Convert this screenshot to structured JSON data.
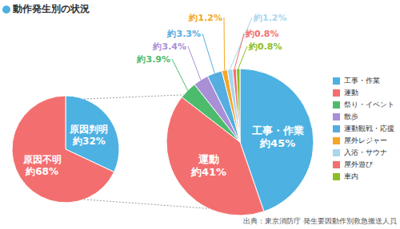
{
  "chart_data": [
    {
      "type": "pie",
      "categories": [
        "原因判明",
        "原因不明"
      ],
      "values": [
        32,
        68
      ],
      "value_labels": [
        "約32%",
        "約68%"
      ],
      "colors": [
        "#4db1e2",
        "#f36f6f"
      ],
      "data_labels": true
    },
    {
      "type": "pie",
      "title": "動作発生別の状況",
      "categories": [
        "工事・作業",
        "運動",
        "祭り・イベント",
        "散歩",
        "運動観戦・応援",
        "屋外レジャー",
        "入浴・サウナ",
        "屋外遊び",
        "車内"
      ],
      "values": [
        45,
        41,
        3.9,
        3.4,
        3.3,
        1.2,
        1.2,
        0.8,
        0.8
      ],
      "value_labels": [
        "約45%",
        "約41%",
        "約3.9%",
        "約3.4%",
        "約3.3%",
        "約1.2%",
        "約1.2%",
        "約0.8%",
        "約0.8%"
      ],
      "colors": [
        "#4db1e2",
        "#f36f6f",
        "#4cbb6c",
        "#a98fd6",
        "#55ade0",
        "#f5a623",
        "#a9d6ef",
        "#f36f6f",
        "#8cbf26"
      ],
      "data_labels": true,
      "legend": "right",
      "annotations": [
        "出典：東京消防庁 発生要因動作別救急搬送人員"
      ]
    }
  ]
}
